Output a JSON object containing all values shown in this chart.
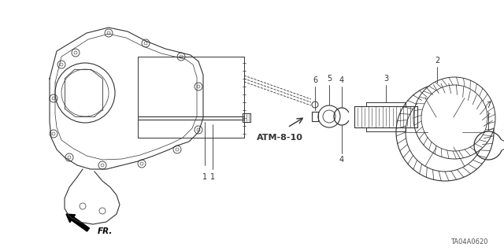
{
  "bg_color": "#ffffff",
  "line_color": "#333333",
  "text_color": "#000000",
  "diagram_id": "TA04A0620",
  "label_atm": "ATM-8-10",
  "label_fr": "FR."
}
